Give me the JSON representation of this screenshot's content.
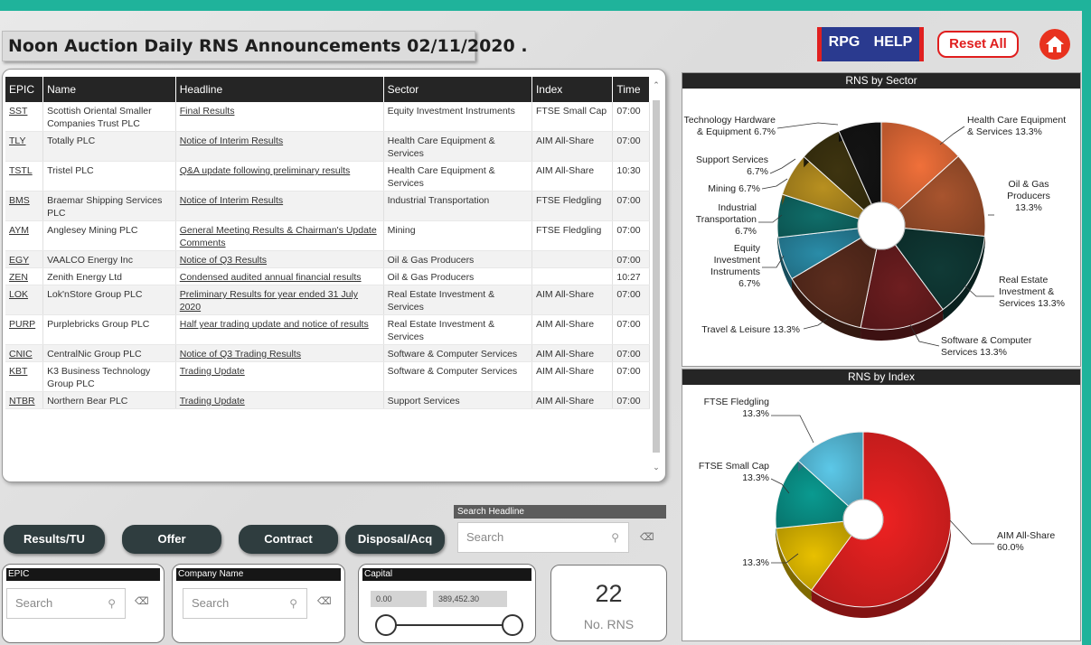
{
  "title": "Noon Auction Daily RNS Announcements 02/11/2020 .",
  "top_buttons": {
    "rpg": "RPG",
    "help": "HELP",
    "reset": "Reset All"
  },
  "table": {
    "headers": [
      "EPIC",
      "Name",
      "Headline",
      "Sector",
      "Index",
      "Time"
    ],
    "rows": [
      [
        "SST",
        "Scottish Oriental Smaller Companies Trust PLC",
        "Final Results",
        "Equity Investment Instruments",
        "FTSE Small Cap",
        "07:00"
      ],
      [
        "TLY",
        "Totally PLC",
        "Notice of Interim Results",
        "Health Care Equipment & Services",
        "AIM All-Share",
        "07:00"
      ],
      [
        "TSTL",
        "Tristel PLC",
        "Q&A update following preliminary results",
        "Health Care Equipment & Services",
        "AIM All-Share",
        "10:30"
      ],
      [
        "BMS",
        "Braemar Shipping Services PLC",
        "Notice of Interim Results",
        "Industrial Transportation",
        "FTSE Fledgling",
        "07:00"
      ],
      [
        "AYM",
        "Anglesey Mining PLC",
        "General Meeting Results & Chairman's Update Comments",
        "Mining",
        "FTSE Fledgling",
        "07:00"
      ],
      [
        "EGY",
        "VAALCO Energy Inc",
        "Notice of Q3 Results",
        "Oil & Gas Producers",
        "",
        "07:00"
      ],
      [
        "ZEN",
        "Zenith Energy Ltd",
        "Condensed audited annual financial results",
        "Oil & Gas Producers",
        "",
        "10:27"
      ],
      [
        "LOK",
        "Lok'nStore Group PLC",
        "Preliminary Results for year ended 31 July 2020",
        "Real Estate Investment & Services",
        "AIM All-Share",
        "07:00"
      ],
      [
        "PURP",
        "Purplebricks Group PLC",
        "Half year trading update and notice of results",
        "Real Estate Investment & Services",
        "AIM All-Share",
        "07:00"
      ],
      [
        "CNIC",
        "CentralNic Group PLC",
        "Notice of Q3 Trading Results",
        "Software & Computer Services",
        "AIM All-Share",
        "07:00"
      ],
      [
        "KBT",
        "K3 Business Technology Group PLC",
        "Trading Update",
        "Software & Computer Services",
        "AIM All-Share",
        "07:00"
      ],
      [
        "NTBR",
        "Northern Bear PLC",
        "Trading Update",
        "Support Services",
        "AIM All-Share",
        "07:00"
      ]
    ]
  },
  "filters": {
    "buttons": [
      "Results/TU",
      "Offer",
      "Contract",
      "Disposal/Acq"
    ],
    "search_headline": {
      "label": "Search Headline",
      "placeholder": "Search"
    },
    "epic": {
      "label": "EPIC",
      "placeholder": "Search"
    },
    "company": {
      "label": "Company Name",
      "placeholder": "Search"
    },
    "capital": {
      "label": "Capital",
      "min": "0.00",
      "max": "389,452.30",
      "range": [
        0.0,
        389452.3
      ]
    }
  },
  "card": {
    "value": "22",
    "label": "No. RNS"
  },
  "charts": [
    {
      "title": "RNS by Sector",
      "type": "pie",
      "slices": [
        {
          "name": "Health Care Equipment & Services",
          "label": "Health Care Equipment & Services 13.3%",
          "value": 13.3,
          "color": "#f0703a"
        },
        {
          "name": "Oil & Gas Producers",
          "label": "Oil & Gas Producers 13.3%",
          "value": 13.3,
          "color": "#a8542e"
        },
        {
          "name": "Real Estate Investment & Services",
          "label": "Real Estate Investment & Services 13.3%",
          "value": 13.3,
          "color": "#103a36"
        },
        {
          "name": "Software & Computer Services",
          "label": "Software & Computer Services 13.3%",
          "value": 13.3,
          "color": "#6e1e20"
        },
        {
          "name": "Travel & Leisure",
          "label": "Travel & Leisure 13.3%",
          "value": 13.3,
          "color": "#5c2d1e"
        },
        {
          "name": "Equity Investment Instruments",
          "label": "Equity Investment Instruments 6.7%",
          "value": 6.7,
          "color": "#2a8ca8"
        },
        {
          "name": "Industrial Transportation",
          "label": "Industrial Transportation 6.7%",
          "value": 6.7,
          "color": "#106e6a"
        },
        {
          "name": "Mining",
          "label": "Mining 6.7%",
          "value": 6.7,
          "color": "#b89020"
        },
        {
          "name": "Support Services",
          "label": "Support Services 6.7%",
          "value": 6.7,
          "color": "#3e3410"
        },
        {
          "name": "Technology Hardware & Equipment",
          "label": "Technology Hardware & Equipment 6.7%",
          "value": 6.7,
          "color": "#141414"
        }
      ]
    },
    {
      "title": "RNS by Index",
      "type": "pie",
      "slices": [
        {
          "name": "AIM All-Share",
          "label": "AIM All-Share 60.0%",
          "value": 60.0,
          "color": "#ee2222"
        },
        {
          "name": "",
          "label": "13.3%",
          "value": 13.3,
          "color": "#e8c000"
        },
        {
          "name": "FTSE Small Cap",
          "label": "FTSE Small Cap 13.3%",
          "value": 13.3,
          "color": "#0a9a90"
        },
        {
          "name": "FTSE Fledgling",
          "label": "FTSE Fledgling 13.3%",
          "value": 13.3,
          "color": "#5cc8e8"
        }
      ]
    }
  ]
}
